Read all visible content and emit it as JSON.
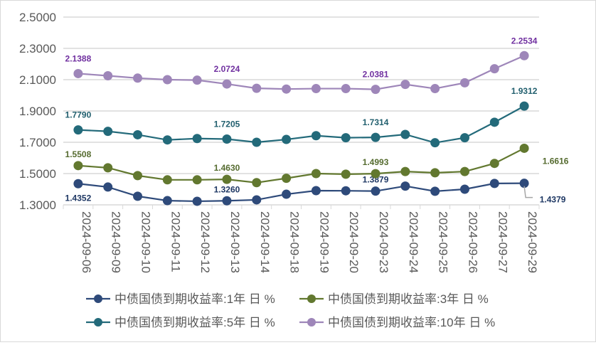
{
  "chart_data": {
    "type": "line",
    "title": "",
    "xlabel": "",
    "ylabel": "",
    "ylim": [
      1.3,
      2.5
    ],
    "yticks": [
      "1.3000",
      "1.5000",
      "1.7000",
      "1.9000",
      "2.1000",
      "2.3000",
      "2.5000"
    ],
    "grid": true,
    "legend_position": "bottom",
    "categories": [
      "2024-09-06",
      "2024-09-09",
      "2024-09-10",
      "2024-09-11",
      "2024-09-12",
      "2024-09-13",
      "2024-09-14",
      "2024-09-18",
      "2024-09-19",
      "2024-09-20",
      "2024-09-23",
      "2024-09-24",
      "2024-09-25",
      "2024-09-26",
      "2024-09-27",
      "2024-09-29"
    ],
    "series": [
      {
        "name": "中债国债到期收益率:1年 日 %",
        "color": "#2e4a7a",
        "label_color": "#1f3864",
        "values": [
          1.4352,
          1.414,
          1.355,
          1.327,
          1.323,
          1.326,
          1.332,
          1.368,
          1.391,
          1.39,
          1.3879,
          1.42,
          1.387,
          1.4,
          1.437,
          1.4379
        ],
        "labels": {
          "0": "1.4352",
          "5": "1.3260",
          "10": "1.3879",
          "15": "1.4379"
        }
      },
      {
        "name": "中债国债到期收益率:3年 日 %",
        "color": "#62782f",
        "label_color": "#556b2f",
        "values": [
          1.5508,
          1.537,
          1.487,
          1.46,
          1.46,
          1.463,
          1.442,
          1.47,
          1.5,
          1.496,
          1.4993,
          1.513,
          1.505,
          1.513,
          1.565,
          1.6616
        ],
        "labels": {
          "0": "1.5508",
          "5": "1.4630",
          "10": "1.4993",
          "15": "1.6616"
        }
      },
      {
        "name": "中债国债到期收益率:5年 日 %",
        "color": "#236a7a",
        "label_color": "#215f6e",
        "values": [
          1.779,
          1.77,
          1.748,
          1.715,
          1.724,
          1.7205,
          1.7,
          1.718,
          1.742,
          1.729,
          1.7314,
          1.75,
          1.697,
          1.729,
          1.828,
          1.9312
        ],
        "labels": {
          "0": "1.7790",
          "5": "1.7205",
          "10": "1.7314",
          "15": "1.9312"
        }
      },
      {
        "name": "中债国债到期收益率:10年 日 %",
        "color": "#9e86b9",
        "label_color": "#7030a0",
        "values": [
          2.1388,
          2.125,
          2.11,
          2.1,
          2.097,
          2.0724,
          2.045,
          2.04,
          2.043,
          2.043,
          2.0381,
          2.07,
          2.043,
          2.08,
          2.17,
          2.2534
        ],
        "labels": {
          "0": "2.1388",
          "5": "2.0724",
          "10": "2.0381",
          "15": "2.2534"
        }
      }
    ]
  }
}
